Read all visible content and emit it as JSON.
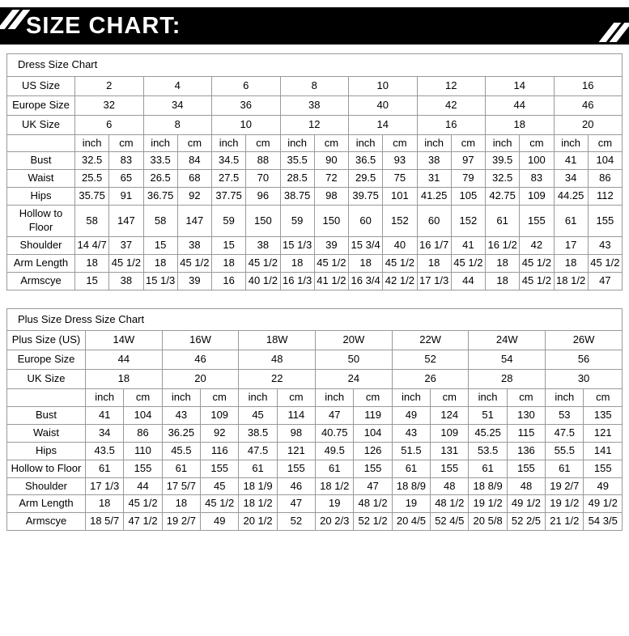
{
  "banner": {
    "title": "SIZE CHART:",
    "bg_color": "#000000",
    "text_color": "#ffffff"
  },
  "tables": [
    {
      "title": "Dress Size Chart",
      "unit_headers": [
        "inch",
        "cm"
      ],
      "size_rows": [
        {
          "label": "US Size",
          "values": [
            "2",
            "4",
            "6",
            "8",
            "10",
            "12",
            "14",
            "16"
          ]
        },
        {
          "label": "Europe Size",
          "values": [
            "32",
            "34",
            "36",
            "38",
            "40",
            "42",
            "44",
            "46"
          ]
        },
        {
          "label": "UK Size",
          "values": [
            "6",
            "8",
            "10",
            "12",
            "14",
            "16",
            "18",
            "20"
          ]
        }
      ],
      "measure_rows": [
        {
          "label": "Bust",
          "values": [
            [
              "32.5",
              "83"
            ],
            [
              "33.5",
              "84"
            ],
            [
              "34.5",
              "88"
            ],
            [
              "35.5",
              "90"
            ],
            [
              "36.5",
              "93"
            ],
            [
              "38",
              "97"
            ],
            [
              "39.5",
              "100"
            ],
            [
              "41",
              "104"
            ]
          ]
        },
        {
          "label": "Waist",
          "values": [
            [
              "25.5",
              "65"
            ],
            [
              "26.5",
              "68"
            ],
            [
              "27.5",
              "70"
            ],
            [
              "28.5",
              "72"
            ],
            [
              "29.5",
              "75"
            ],
            [
              "31",
              "79"
            ],
            [
              "32.5",
              "83"
            ],
            [
              "34",
              "86"
            ]
          ]
        },
        {
          "label": "Hips",
          "values": [
            [
              "35.75",
              "91"
            ],
            [
              "36.75",
              "92"
            ],
            [
              "37.75",
              "96"
            ],
            [
              "38.75",
              "98"
            ],
            [
              "39.75",
              "101"
            ],
            [
              "41.25",
              "105"
            ],
            [
              "42.75",
              "109"
            ],
            [
              "44.25",
              "112"
            ]
          ]
        },
        {
          "label": "Hollow to Floor",
          "values": [
            [
              "58",
              "147"
            ],
            [
              "58",
              "147"
            ],
            [
              "59",
              "150"
            ],
            [
              "59",
              "150"
            ],
            [
              "60",
              "152"
            ],
            [
              "60",
              "152"
            ],
            [
              "61",
              "155"
            ],
            [
              "61",
              "155"
            ]
          ]
        },
        {
          "label": "Shoulder",
          "values": [
            [
              "14 4/7",
              "37"
            ],
            [
              "15",
              "38"
            ],
            [
              "15",
              "38"
            ],
            [
              "15 1/3",
              "39"
            ],
            [
              "15 3/4",
              "40"
            ],
            [
              "16 1/7",
              "41"
            ],
            [
              "16 1/2",
              "42"
            ],
            [
              "17",
              "43"
            ]
          ]
        },
        {
          "label": "Arm Length",
          "values": [
            [
              "18",
              "45 1/2"
            ],
            [
              "18",
              "45 1/2"
            ],
            [
              "18",
              "45 1/2"
            ],
            [
              "18",
              "45 1/2"
            ],
            [
              "18",
              "45 1/2"
            ],
            [
              "18",
              "45 1/2"
            ],
            [
              "18",
              "45 1/2"
            ],
            [
              "18",
              "45 1/2"
            ]
          ]
        },
        {
          "label": "Armscye",
          "values": [
            [
              "15",
              "38"
            ],
            [
              "15 1/3",
              "39"
            ],
            [
              "16",
              "40 1/2"
            ],
            [
              "16 1/3",
              "41 1/2"
            ],
            [
              "16 3/4",
              "42 1/2"
            ],
            [
              "17 1/3",
              "44"
            ],
            [
              "18",
              "45 1/2"
            ],
            [
              "18 1/2",
              "47"
            ]
          ]
        }
      ]
    },
    {
      "title": "Plus Size Dress Size Chart",
      "unit_headers": [
        "inch",
        "cm"
      ],
      "size_rows": [
        {
          "label": "Plus Size (US)",
          "values": [
            "14W",
            "16W",
            "18W",
            "20W",
            "22W",
            "24W",
            "26W"
          ]
        },
        {
          "label": "Europe Size",
          "values": [
            "44",
            "46",
            "48",
            "50",
            "52",
            "54",
            "56"
          ]
        },
        {
          "label": "UK Size",
          "values": [
            "18",
            "20",
            "22",
            "24",
            "26",
            "28",
            "30"
          ]
        }
      ],
      "measure_rows": [
        {
          "label": "Bust",
          "values": [
            [
              "41",
              "104"
            ],
            [
              "43",
              "109"
            ],
            [
              "45",
              "114"
            ],
            [
              "47",
              "119"
            ],
            [
              "49",
              "124"
            ],
            [
              "51",
              "130"
            ],
            [
              "53",
              "135"
            ]
          ]
        },
        {
          "label": "Waist",
          "values": [
            [
              "34",
              "86"
            ],
            [
              "36.25",
              "92"
            ],
            [
              "38.5",
              "98"
            ],
            [
              "40.75",
              "104"
            ],
            [
              "43",
              "109"
            ],
            [
              "45.25",
              "115"
            ],
            [
              "47.5",
              "121"
            ]
          ]
        },
        {
          "label": "Hips",
          "values": [
            [
              "43.5",
              "110"
            ],
            [
              "45.5",
              "116"
            ],
            [
              "47.5",
              "121"
            ],
            [
              "49.5",
              "126"
            ],
            [
              "51.5",
              "131"
            ],
            [
              "53.5",
              "136"
            ],
            [
              "55.5",
              "141"
            ]
          ]
        },
        {
          "label": "Hollow to Floor",
          "values": [
            [
              "61",
              "155"
            ],
            [
              "61",
              "155"
            ],
            [
              "61",
              "155"
            ],
            [
              "61",
              "155"
            ],
            [
              "61",
              "155"
            ],
            [
              "61",
              "155"
            ],
            [
              "61",
              "155"
            ]
          ]
        },
        {
          "label": "Shoulder",
          "values": [
            [
              "17 1/3",
              "44"
            ],
            [
              "17 5/7",
              "45"
            ],
            [
              "18 1/9",
              "46"
            ],
            [
              "18 1/2",
              "47"
            ],
            [
              "18 8/9",
              "48"
            ],
            [
              "18 8/9",
              "48"
            ],
            [
              "19 2/7",
              "49"
            ]
          ]
        },
        {
          "label": "Arm Length",
          "values": [
            [
              "18",
              "45 1/2"
            ],
            [
              "18",
              "45 1/2"
            ],
            [
              "18 1/2",
              "47"
            ],
            [
              "19",
              "48 1/2"
            ],
            [
              "19",
              "48 1/2"
            ],
            [
              "19 1/2",
              "49 1/2"
            ],
            [
              "19 1/2",
              "49 1/2"
            ]
          ]
        },
        {
          "label": "Armscye",
          "values": [
            [
              "18 5/7",
              "47 1/2"
            ],
            [
              "19 2/7",
              "49"
            ],
            [
              "20 1/2",
              "52"
            ],
            [
              "20 2/3",
              "52 1/2"
            ],
            [
              "20 4/5",
              "52 4/5"
            ],
            [
              "20 5/8",
              "52 2/5"
            ],
            [
              "21 1/2",
              "54 3/5"
            ]
          ]
        }
      ]
    }
  ]
}
